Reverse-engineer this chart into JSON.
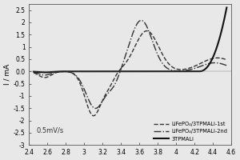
{
  "title": "",
  "xlabel": "",
  "ylabel": "I / mA",
  "xlim": [
    2.4,
    4.6
  ],
  "ylim": [
    -3.0,
    2.75
  ],
  "annotation": "0.5mV/s",
  "legend_entries": [
    "LiFePO₄/3TPMALi-1st",
    "LiFePO₄/3TPMALi-2nd",
    "3TPMALi"
  ],
  "xticks": [
    2.4,
    2.6,
    2.8,
    3.0,
    3.2,
    3.4,
    3.6,
    3.8,
    4.0,
    4.2,
    4.4,
    4.6
  ],
  "yticks": [
    -3.0,
    -2.5,
    -2.0,
    -1.5,
    -1.0,
    -0.5,
    0.0,
    0.5,
    1.0,
    1.5,
    2.0,
    2.5
  ],
  "background_color": "#e8e8e8",
  "line_color": "#333333"
}
